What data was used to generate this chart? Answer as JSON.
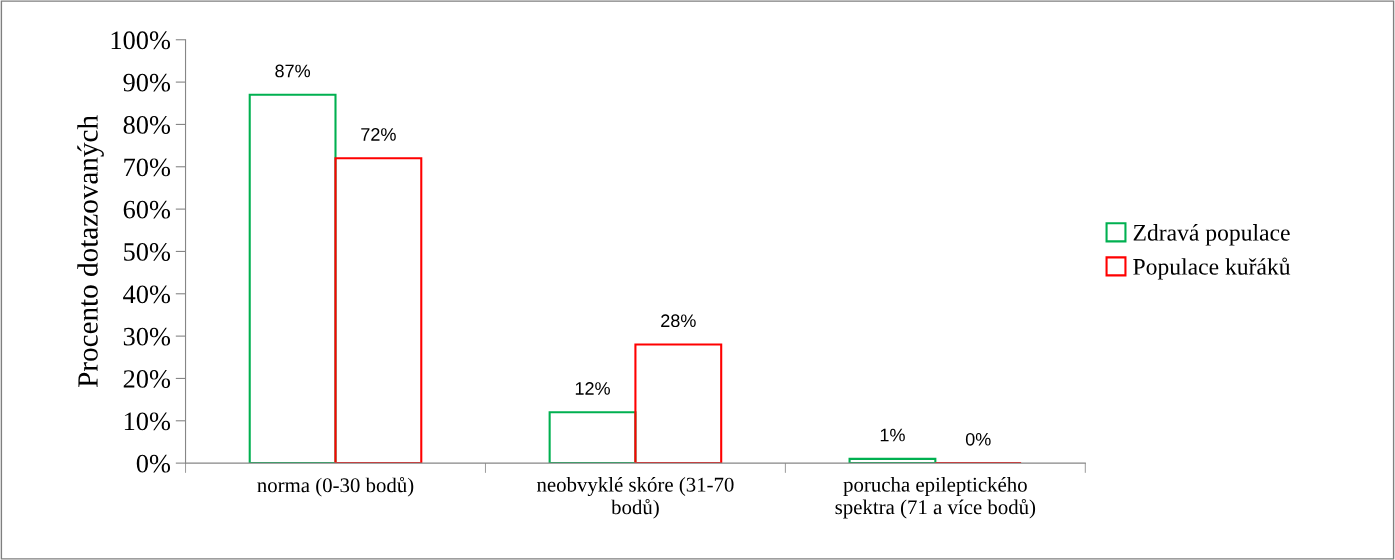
{
  "chart_data": {
    "type": "bar",
    "ylabel": "Procento dotazovaných",
    "categories": [
      "norma (0-30 bodů)",
      "neobvyklé skóre (31-70 bodů)",
      "porucha epileptického spektra (71 a více bodů)"
    ],
    "series": [
      {
        "name": "Zdravá populace",
        "color": "#00b050",
        "values": [
          87,
          12,
          1
        ],
        "value_labels": [
          "87%",
          "12%",
          "1%"
        ]
      },
      {
        "name": "Populace kuřáků",
        "color": "#ff0000",
        "values": [
          72,
          28,
          0
        ],
        "value_labels": [
          "72%",
          "28%",
          "0%"
        ]
      }
    ],
    "ylim": [
      0,
      100
    ],
    "yticks": [
      {
        "value": 0,
        "label": "0%"
      },
      {
        "value": 10,
        "label": "10%"
      },
      {
        "value": 20,
        "label": "20%"
      },
      {
        "value": 30,
        "label": "30%"
      },
      {
        "value": 40,
        "label": "40%"
      },
      {
        "value": 50,
        "label": "50%"
      },
      {
        "value": 60,
        "label": "60%"
      },
      {
        "value": 70,
        "label": "70%"
      },
      {
        "value": 80,
        "label": "80%"
      },
      {
        "value": 90,
        "label": "90%"
      },
      {
        "value": 100,
        "label": "100%"
      }
    ],
    "grid": false,
    "legend": "right"
  }
}
